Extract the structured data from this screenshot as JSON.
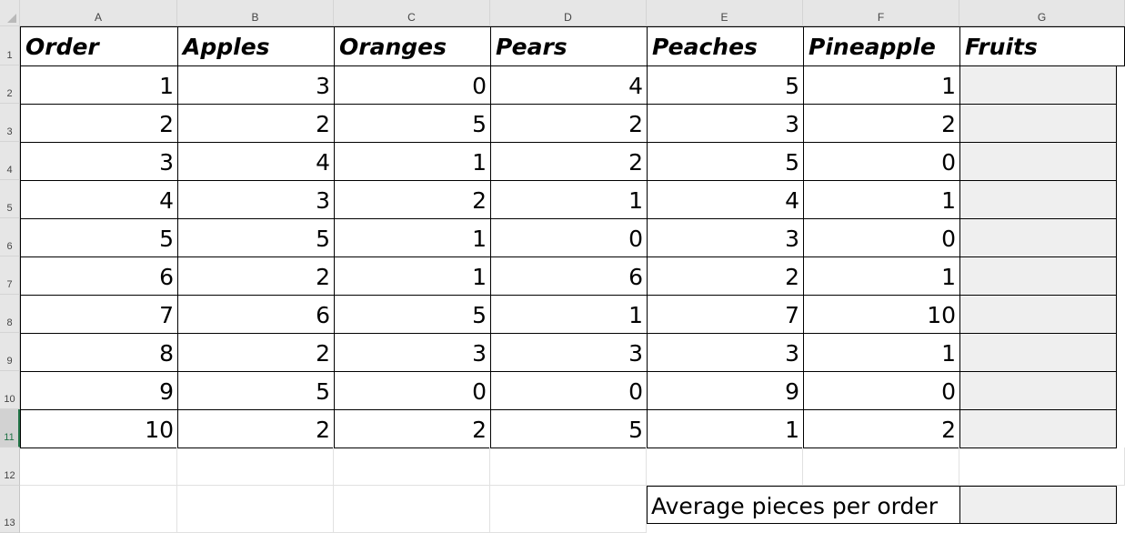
{
  "columns": [
    "A",
    "B",
    "C",
    "D",
    "E",
    "F",
    "G"
  ],
  "rows": [
    "1",
    "2",
    "3",
    "4",
    "5",
    "6",
    "7",
    "8",
    "9",
    "10",
    "11",
    "12",
    "13"
  ],
  "headers": [
    "Order",
    "Apples",
    "Oranges",
    "Pears",
    "Peaches",
    "Pineapple",
    "Fruits"
  ],
  "data": [
    [
      "1",
      "3",
      "0",
      "4",
      "5",
      "1"
    ],
    [
      "2",
      "2",
      "5",
      "2",
      "3",
      "2"
    ],
    [
      "3",
      "4",
      "1",
      "2",
      "5",
      "0"
    ],
    [
      "4",
      "3",
      "2",
      "1",
      "4",
      "1"
    ],
    [
      "5",
      "5",
      "1",
      "0",
      "3",
      "0"
    ],
    [
      "6",
      "2",
      "1",
      "6",
      "2",
      "1"
    ],
    [
      "7",
      "6",
      "5",
      "1",
      "7",
      "10"
    ],
    [
      "8",
      "2",
      "3",
      "3",
      "3",
      "1"
    ],
    [
      "9",
      "5",
      "0",
      "0",
      "9",
      "0"
    ],
    [
      "10",
      "2",
      "2",
      "5",
      "1",
      "2"
    ]
  ],
  "summary_label": "Average pieces per order",
  "active_row": "11",
  "colors": {
    "selection": "#217346",
    "header_bg": "#e6e6e6",
    "fill_gray": "#efefef"
  }
}
